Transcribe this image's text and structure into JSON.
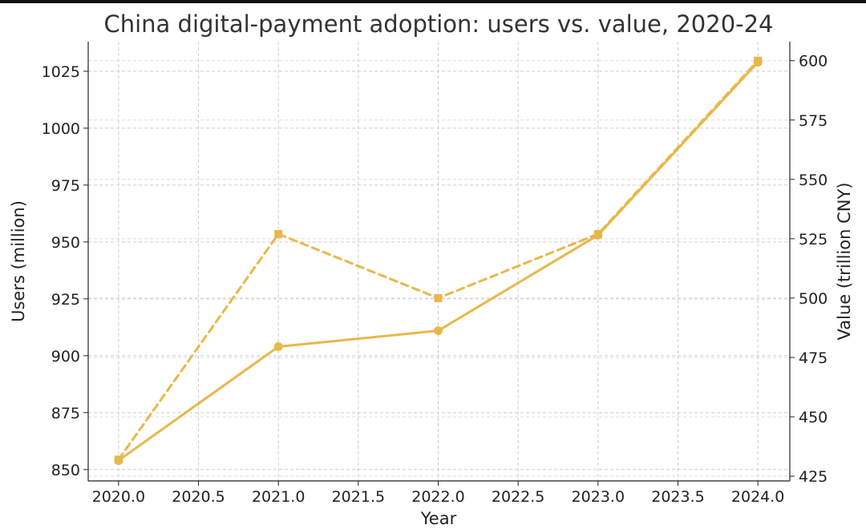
{
  "chart_data": {
    "type": "line",
    "title": "China digital-payment adoption: users vs. value, 2020-24",
    "xlabel": "Year",
    "ylabel_left": "Users (million)",
    "ylabel_right": "Value (trillion CNY)",
    "x": [
      2020,
      2021,
      2022,
      2023,
      2024
    ],
    "x_ticks": [
      "2020.0",
      "2020.5",
      "2021.0",
      "2021.5",
      "2022.0",
      "2022.5",
      "2023.0",
      "2023.5",
      "2024.0"
    ],
    "x_tick_values": [
      2020,
      2020.5,
      2021,
      2021.5,
      2022,
      2022.5,
      2023,
      2023.5,
      2024
    ],
    "xlim": [
      2019.81,
      2024.2
    ],
    "y_left_ticks": [
      "850",
      "875",
      "900",
      "925",
      "950",
      "975",
      "1000",
      "1025"
    ],
    "y_left_tick_values": [
      850,
      875,
      900,
      925,
      950,
      975,
      1000,
      1025
    ],
    "ylim_left": [
      845,
      1038
    ],
    "y_right_ticks": [
      "425",
      "450",
      "475",
      "500",
      "525",
      "550",
      "575",
      "600"
    ],
    "y_right_tick_values": [
      425,
      450,
      475,
      500,
      525,
      550,
      575,
      600
    ],
    "ylim_right": [
      423,
      608
    ],
    "grid": true,
    "series": [
      {
        "axis": "left",
        "style": "solid",
        "marker": "circle",
        "color": "#E8B84A",
        "values": [
          854,
          904,
          911,
          953,
          1029
        ]
      },
      {
        "axis": "right",
        "style": "dashed",
        "marker": "square",
        "color": "#E8B84A",
        "values": [
          432,
          527,
          500,
          527,
          600
        ]
      }
    ]
  }
}
